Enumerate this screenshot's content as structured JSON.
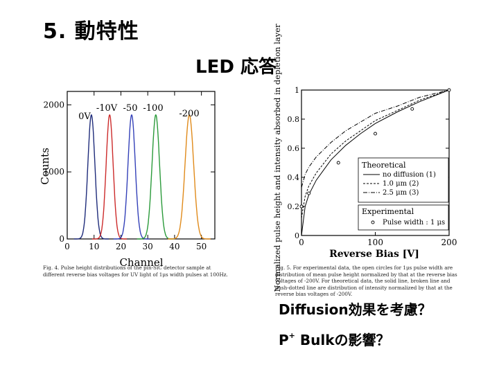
{
  "slide": {
    "title": "5. 動特性",
    "subtitle": "LED 応答",
    "question1": "Diffusion効果を考慮？",
    "question2_prefix": "P",
    "question2_sup": "+",
    "question2_suffix": " Bulkの影響？"
  },
  "chart_data": [
    {
      "type": "line",
      "title": "",
      "xlabel": "Channel",
      "ylabel": "Counts",
      "xlim": [
        0,
        55
      ],
      "ylim": [
        0,
        2200
      ],
      "x_ticks": [
        "0",
        "10",
        "20",
        "30",
        "40",
        "50"
      ],
      "y_ticks": [
        "0",
        "1000",
        "2000"
      ],
      "peak_labels": [
        "0V",
        "-10V",
        "-50",
        "-100",
        "-200"
      ],
      "series": [
        {
          "center": 9.0,
          "sigma": 1.3,
          "peak": 1850,
          "color": "#1e2b7a"
        },
        {
          "center": 15.8,
          "sigma": 1.3,
          "peak": 1850,
          "color": "#cc2a2a"
        },
        {
          "center": 24.0,
          "sigma": 1.35,
          "peak": 1850,
          "color": "#3340b8"
        },
        {
          "center": 33.0,
          "sigma": 1.4,
          "peak": 1850,
          "color": "#2a9a3a"
        },
        {
          "center": 45.5,
          "sigma": 1.6,
          "peak": 1850,
          "color": "#e08a1a"
        }
      ],
      "caption": "Fig. 4. Pulse height distributions of the pin-SiC detector sample at different reverse bias voltages for UV light of 1μs width pulses at 100Hz."
    },
    {
      "type": "line",
      "title": "",
      "xlabel": "Reverse Bias [V]",
      "ylabel": "Normalized pulse height and intensity absorbed in depletion layer",
      "xlim": [
        0,
        200
      ],
      "ylim": [
        0,
        1.0
      ],
      "x_ticks": [
        "0",
        "100",
        "200"
      ],
      "y_ticks": [
        "0",
        "0.2",
        "0.4",
        "0.6",
        "0.8",
        "1"
      ],
      "legend_theoretical_title": "Theoretical",
      "legend_theoretical": [
        "no diffusion (1)",
        "1.0 μm (2)",
        "2.5 μm (3)"
      ],
      "legend_experimental_title": "Experimental",
      "legend_experimental": [
        "Pulse width : 1 μs"
      ],
      "legend_placement": "lower-right",
      "series": [
        {
          "name": "no diffusion (1)",
          "x": [
            0,
            5,
            10,
            20,
            40,
            60,
            80,
            100,
            130,
            160,
            200
          ],
          "y": [
            0,
            0.2,
            0.28,
            0.38,
            0.52,
            0.62,
            0.7,
            0.77,
            0.85,
            0.92,
            1.0
          ]
        },
        {
          "name": "1.0 μm (2)",
          "x": [
            0,
            5,
            10,
            20,
            40,
            60,
            80,
            100,
            130,
            160,
            200
          ],
          "y": [
            0.12,
            0.27,
            0.34,
            0.43,
            0.56,
            0.65,
            0.72,
            0.79,
            0.86,
            0.93,
            1.0
          ]
        },
        {
          "name": "2.5 μm (3)",
          "x": [
            0,
            5,
            10,
            20,
            40,
            60,
            80,
            100,
            130,
            160,
            200
          ],
          "y": [
            0.33,
            0.42,
            0.47,
            0.54,
            0.64,
            0.72,
            0.78,
            0.84,
            0.89,
            0.95,
            1.0
          ]
        },
        {
          "name": "Pulse width : 1 μs",
          "x": [
            0,
            10,
            50,
            100,
            150,
            200
          ],
          "y": [
            0.2,
            0.29,
            0.5,
            0.7,
            0.87,
            1.0
          ]
        }
      ],
      "caption": "Fig. 5. For experimental data, the open circles for 1μs pulse width are distribution of mean pulse height normalized by that at the reverse bias voltages of -200V. For theoretical data, the solid line, broken line and dash-dotted line are distribution of intensity normalized by that at the reverse bias voltages of -200V."
    }
  ]
}
